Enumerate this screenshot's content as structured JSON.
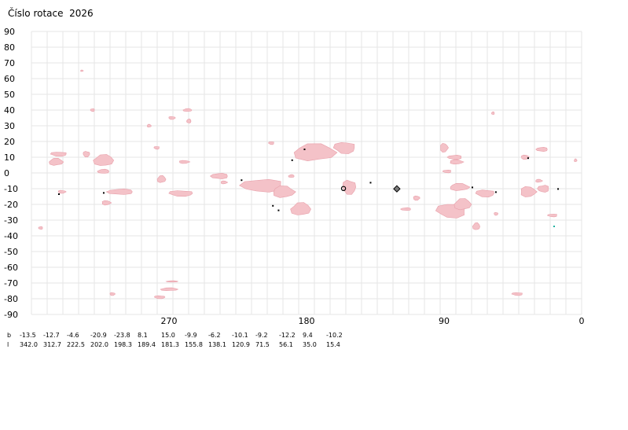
{
  "title": "Číslo rotace  2026",
  "chart_data": {
    "type": "scatter",
    "title": "Číslo rotace  2026",
    "xlabel": "",
    "ylabel": "",
    "xlim": [
      360,
      0
    ],
    "ylim": [
      -90,
      90
    ],
    "x_ticks": [
      "270",
      "180",
      "90",
      "0"
    ],
    "x_tick_values": [
      270,
      180,
      90,
      0
    ],
    "y_ticks": [
      "90",
      "80",
      "70",
      "60",
      "50",
      "40",
      "30",
      "20",
      "10",
      "0",
      "-10",
      "-20",
      "-30",
      "-40",
      "-50",
      "-60",
      "-70",
      "-80",
      "-90"
    ],
    "y_tick_values": [
      90,
      80,
      70,
      60,
      50,
      40,
      30,
      20,
      10,
      0,
      -10,
      -20,
      -30,
      -40,
      -50,
      -60,
      -70,
      -80,
      -90
    ],
    "grid": true,
    "colors": {
      "grid": "#e6e6e6",
      "region": "#f4c2c8",
      "region_border": "#e8a0aa",
      "marker": "#000000",
      "current_marker": "#7a7a7a",
      "teal_marker": "#20b0a0"
    },
    "regions": [
      {
        "cx": 344,
        "cy": 7,
        "w": 10,
        "h": 5
      },
      {
        "cx": 342,
        "cy": 12,
        "w": 12,
        "h": 3
      },
      {
        "cx": 313,
        "cy": 8,
        "w": 14,
        "h": 8
      },
      {
        "cx": 324,
        "cy": 12,
        "w": 5,
        "h": 4
      },
      {
        "cx": 313,
        "cy": 1,
        "w": 8,
        "h": 3
      },
      {
        "cx": 340,
        "cy": -12,
        "w": 6,
        "h": 2
      },
      {
        "cx": 302,
        "cy": -12,
        "w": 18,
        "h": 4
      },
      {
        "cx": 311,
        "cy": -19,
        "w": 7,
        "h": 3
      },
      {
        "cx": 354,
        "cy": -35,
        "w": 3,
        "h": 2
      },
      {
        "cx": 327,
        "cy": 65,
        "w": 2,
        "h": 1
      },
      {
        "cx": 320,
        "cy": 40,
        "w": 3,
        "h": 2
      },
      {
        "cx": 283,
        "cy": 30,
        "w": 3,
        "h": 2
      },
      {
        "cx": 278,
        "cy": 16,
        "w": 4,
        "h": 2
      },
      {
        "cx": 275,
        "cy": -4,
        "w": 6,
        "h": 5
      },
      {
        "cx": 262,
        "cy": -13,
        "w": 18,
        "h": 4
      },
      {
        "cx": 258,
        "cy": 40,
        "w": 6,
        "h": 2
      },
      {
        "cx": 268,
        "cy": 35,
        "w": 5,
        "h": 2
      },
      {
        "cx": 257,
        "cy": 33,
        "w": 3,
        "h": 3
      },
      {
        "cx": 260,
        "cy": 7,
        "w": 8,
        "h": 2
      },
      {
        "cx": 237,
        "cy": -2,
        "w": 12,
        "h": 4
      },
      {
        "cx": 234,
        "cy": -6,
        "w": 5,
        "h": 2
      },
      {
        "cx": 209,
        "cy": -8,
        "w": 30,
        "h": 9
      },
      {
        "cx": 195,
        "cy": -12,
        "w": 16,
        "h": 8
      },
      {
        "cx": 203,
        "cy": 19,
        "w": 4,
        "h": 2
      },
      {
        "cx": 175,
        "cy": 13,
        "w": 30,
        "h": 12
      },
      {
        "cx": 155,
        "cy": 16,
        "w": 16,
        "h": 8
      },
      {
        "cx": 184,
        "cy": -23,
        "w": 14,
        "h": 9
      },
      {
        "cx": 152,
        "cy": -9,
        "w": 10,
        "h": 10
      },
      {
        "cx": 190,
        "cy": -2,
        "w": 4,
        "h": 2
      },
      {
        "cx": 108,
        "cy": -16,
        "w": 5,
        "h": 3
      },
      {
        "cx": 115,
        "cy": -23,
        "w": 7,
        "h": 2
      },
      {
        "cx": 90,
        "cy": 16,
        "w": 6,
        "h": 6
      },
      {
        "cx": 83,
        "cy": 10,
        "w": 10,
        "h": 3
      },
      {
        "cx": 82,
        "cy": 7,
        "w": 10,
        "h": 3
      },
      {
        "cx": 88,
        "cy": 1,
        "w": 6,
        "h": 2
      },
      {
        "cx": 80,
        "cy": -9,
        "w": 14,
        "h": 5
      },
      {
        "cx": 85,
        "cy": -24,
        "w": 22,
        "h": 10
      },
      {
        "cx": 78,
        "cy": -20,
        "w": 12,
        "h": 8
      },
      {
        "cx": 63,
        "cy": -13,
        "w": 14,
        "h": 5
      },
      {
        "cx": 69,
        "cy": -34,
        "w": 5,
        "h": 5
      },
      {
        "cx": 56,
        "cy": -26,
        "w": 3,
        "h": 2
      },
      {
        "cx": 58,
        "cy": 38,
        "w": 2,
        "h": 2
      },
      {
        "cx": 37,
        "cy": 10,
        "w": 6,
        "h": 3
      },
      {
        "cx": 26,
        "cy": 15,
        "w": 8,
        "h": 3
      },
      {
        "cx": 35,
        "cy": -12,
        "w": 12,
        "h": 7
      },
      {
        "cx": 25,
        "cy": -10,
        "w": 8,
        "h": 5
      },
      {
        "cx": 28,
        "cy": -5,
        "w": 5,
        "h": 2
      },
      {
        "cx": 19,
        "cy": -27,
        "w": 7,
        "h": 2
      },
      {
        "cx": 4,
        "cy": 8,
        "w": 2,
        "h": 2
      },
      {
        "cx": 42,
        "cy": -77,
        "w": 8,
        "h": 2
      },
      {
        "cx": 270,
        "cy": -74,
        "w": 12,
        "h": 2
      },
      {
        "cx": 276,
        "cy": -79,
        "w": 8,
        "h": 2
      },
      {
        "cx": 268,
        "cy": -69,
        "w": 8,
        "h": 1
      },
      {
        "cx": 307,
        "cy": -77,
        "w": 4,
        "h": 2
      }
    ],
    "markers": [
      {
        "x": 342.0,
        "y": -13.5,
        "style": "dot"
      },
      {
        "x": 312.7,
        "y": -12.7,
        "style": "dot"
      },
      {
        "x": 222.5,
        "y": -4.6,
        "style": "dot"
      },
      {
        "x": 202.0,
        "y": -20.9,
        "style": "dot"
      },
      {
        "x": 198.3,
        "y": -23.8,
        "style": "dot"
      },
      {
        "x": 189.4,
        "y": 8.1,
        "style": "dot"
      },
      {
        "x": 181.3,
        "y": 15.0,
        "style": "dot"
      },
      {
        "x": 155.8,
        "y": -9.9,
        "style": "ring"
      },
      {
        "x": 138.1,
        "y": -6.2,
        "style": "dot"
      },
      {
        "x": 120.9,
        "y": -10.1,
        "style": "diamond"
      },
      {
        "x": 71.5,
        "y": -9.2,
        "style": "dot"
      },
      {
        "x": 56.1,
        "y": -12.2,
        "style": "dot"
      },
      {
        "x": 35.0,
        "y": 9.4,
        "style": "dot"
      },
      {
        "x": 15.4,
        "y": -10.2,
        "style": "dot"
      },
      {
        "x": 18.0,
        "y": -34.0,
        "style": "teal"
      }
    ],
    "table": {
      "row_labels": [
        "b",
        "l"
      ],
      "b": [
        "-13.5",
        "-12.7",
        "-4.6",
        "-20.9",
        "-23.8",
        "8.1",
        "15.0",
        "-9.9",
        "-6.2",
        "-10.1",
        "-9.2",
        "-12.2",
        "9.4",
        "-10.2"
      ],
      "l": [
        "342.0",
        "312.7",
        "222.5",
        "202.0",
        "198.3",
        "189.4",
        "181.3",
        "155.8",
        "138.1",
        "120.9",
        "71.5",
        "56.1",
        "35.0",
        "15.4"
      ]
    }
  }
}
